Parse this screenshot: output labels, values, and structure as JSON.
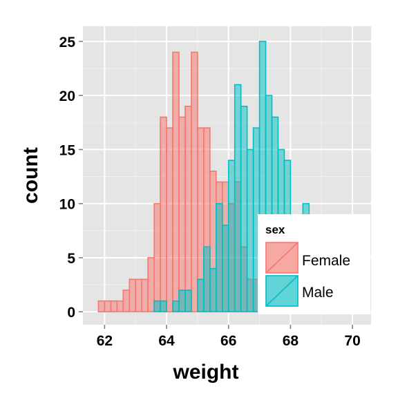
{
  "chart_data": {
    "type": "bar",
    "subtype": "histogram",
    "title": "",
    "xlabel": "weight",
    "ylabel": "count",
    "xlim": [
      61.3,
      70.6
    ],
    "ylim": [
      -1.2,
      26.4
    ],
    "x_ticks": [
      62,
      64,
      66,
      68,
      70
    ],
    "y_ticks": [
      0,
      5,
      10,
      15,
      20,
      25
    ],
    "grid": true,
    "bin_width": 0.2,
    "series_overlap": "identity",
    "legend": {
      "title": "sex",
      "position": "bottom-right",
      "entries": [
        "Female",
        "Male"
      ]
    },
    "series": [
      {
        "name": "Female",
        "fill": "#f8766d",
        "stroke": "#f8766d",
        "bins": [
          {
            "x": 61.7,
            "count": 0
          },
          {
            "x": 61.9,
            "count": 1
          },
          {
            "x": 62.1,
            "count": 1
          },
          {
            "x": 62.3,
            "count": 1
          },
          {
            "x": 62.5,
            "count": 1
          },
          {
            "x": 62.7,
            "count": 2
          },
          {
            "x": 62.9,
            "count": 3
          },
          {
            "x": 63.1,
            "count": 3
          },
          {
            "x": 63.3,
            "count": 3
          },
          {
            "x": 63.5,
            "count": 5
          },
          {
            "x": 63.7,
            "count": 10
          },
          {
            "x": 63.9,
            "count": 18
          },
          {
            "x": 64.1,
            "count": 17
          },
          {
            "x": 64.3,
            "count": 24
          },
          {
            "x": 64.5,
            "count": 18
          },
          {
            "x": 64.7,
            "count": 19
          },
          {
            "x": 64.9,
            "count": 24
          },
          {
            "x": 65.1,
            "count": 17
          },
          {
            "x": 65.3,
            "count": 17
          },
          {
            "x": 65.5,
            "count": 13
          },
          {
            "x": 65.7,
            "count": 12
          },
          {
            "x": 65.9,
            "count": 12
          },
          {
            "x": 66.1,
            "count": 10
          },
          {
            "x": 66.3,
            "count": 12
          },
          {
            "x": 66.5,
            "count": 6
          },
          {
            "x": 66.7,
            "count": 3
          },
          {
            "x": 66.9,
            "count": 3
          },
          {
            "x": 67.1,
            "count": 4
          },
          {
            "x": 67.3,
            "count": 6
          },
          {
            "x": 67.5,
            "count": 6
          },
          {
            "x": 67.7,
            "count": 3
          },
          {
            "x": 67.9,
            "count": 0
          }
        ]
      },
      {
        "name": "Male",
        "fill": "#00bfc4",
        "stroke": "#00bfc4",
        "bins": [
          {
            "x": 61.7,
            "count": 0
          },
          {
            "x": 61.9,
            "count": 0
          },
          {
            "x": 62.1,
            "count": 0
          },
          {
            "x": 62.3,
            "count": 0
          },
          {
            "x": 62.5,
            "count": 0
          },
          {
            "x": 62.7,
            "count": 0
          },
          {
            "x": 62.9,
            "count": 0
          },
          {
            "x": 63.1,
            "count": 0
          },
          {
            "x": 63.3,
            "count": 0
          },
          {
            "x": 63.5,
            "count": 0
          },
          {
            "x": 63.7,
            "count": 1
          },
          {
            "x": 63.9,
            "count": 1
          },
          {
            "x": 64.1,
            "count": 0
          },
          {
            "x": 64.3,
            "count": 1
          },
          {
            "x": 64.5,
            "count": 2
          },
          {
            "x": 64.7,
            "count": 2
          },
          {
            "x": 64.9,
            "count": 0
          },
          {
            "x": 65.1,
            "count": 3
          },
          {
            "x": 65.3,
            "count": 6
          },
          {
            "x": 65.5,
            "count": 4
          },
          {
            "x": 65.7,
            "count": 10
          },
          {
            "x": 65.9,
            "count": 8
          },
          {
            "x": 66.1,
            "count": 14
          },
          {
            "x": 66.3,
            "count": 21
          },
          {
            "x": 66.5,
            "count": 19
          },
          {
            "x": 66.7,
            "count": 15
          },
          {
            "x": 66.9,
            "count": 17
          },
          {
            "x": 67.1,
            "count": 25
          },
          {
            "x": 67.3,
            "count": 20
          },
          {
            "x": 67.5,
            "count": 18
          },
          {
            "x": 67.7,
            "count": 15
          },
          {
            "x": 67.9,
            "count": 14
          },
          {
            "x": 68.1,
            "count": 7
          },
          {
            "x": 68.3,
            "count": 7
          },
          {
            "x": 68.5,
            "count": 10
          },
          {
            "x": 68.7,
            "count": 0
          },
          {
            "x": 68.9,
            "count": 0
          }
        ]
      }
    ]
  }
}
